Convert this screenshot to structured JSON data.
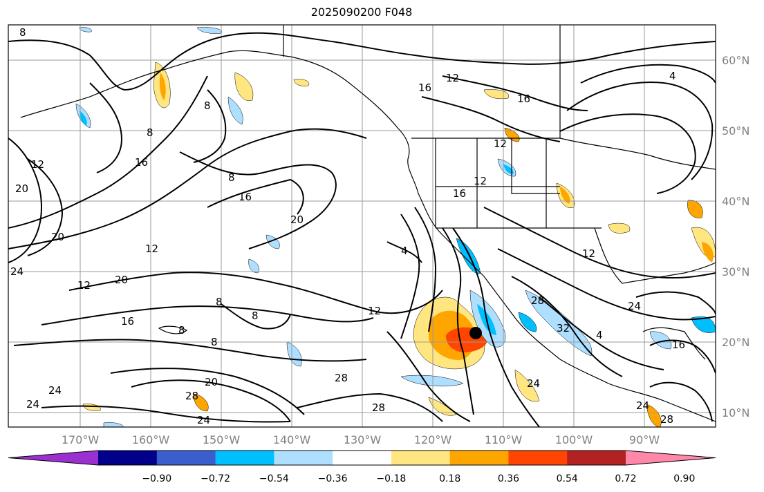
{
  "title": "2025090200 F048",
  "map": {
    "lat_labels": [
      "60°N",
      "50°N",
      "40°N",
      "30°N",
      "20°N",
      "10°N"
    ],
    "lon_labels": [
      "170°W",
      "160°W",
      "150°W",
      "140°W",
      "130°W",
      "120°W",
      "110°W",
      "100°W",
      "90°W"
    ],
    "contour_labels": [
      "8",
      "12",
      "16",
      "20",
      "24",
      "28",
      "32",
      "4"
    ],
    "storm_marker": "tropical-cyclone-center"
  },
  "colorbar": {
    "ticks": [
      "−0.90",
      "−0.72",
      "−0.54",
      "−0.36",
      "−0.18",
      "0.18",
      "0.36",
      "0.54",
      "0.72",
      "0.90"
    ],
    "colors": [
      "#9b30d0",
      "#00008b",
      "#3a5fcd",
      "#00bfff",
      "#afdfff",
      "#ffffff",
      "#ffe680",
      "#ffa500",
      "#ff4500",
      "#b22222",
      "#ff88aa"
    ]
  }
}
